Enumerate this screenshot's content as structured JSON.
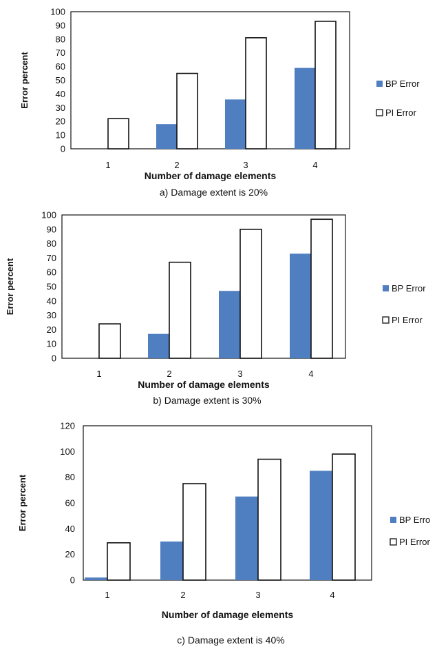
{
  "colors": {
    "bp_fill": "#4f7fc0",
    "pi_fill": "#ffffff",
    "stroke": "#111111"
  },
  "chart_data": [
    {
      "type": "bar",
      "caption": "a) Damage extent is 20%",
      "xlabel": "Number of damage elements",
      "ylabel": "Error percent",
      "categories": [
        "1",
        "2",
        "3",
        "4"
      ],
      "ylim": [
        0,
        100
      ],
      "yticks": [
        "0",
        "10",
        "20",
        "30",
        "40",
        "50",
        "60",
        "70",
        "80",
        "90",
        "100"
      ],
      "legend_position": "right",
      "series": [
        {
          "name": "BP Error",
          "values": [
            0,
            18,
            36,
            59
          ]
        },
        {
          "name": "PI Error",
          "values": [
            22,
            55,
            81,
            93
          ]
        }
      ]
    },
    {
      "type": "bar",
      "caption": "b) Damage extent is 30%",
      "xlabel": "Number of damage elements",
      "ylabel": "Error percent",
      "categories": [
        "1",
        "2",
        "3",
        "4"
      ],
      "ylim": [
        0,
        100
      ],
      "yticks": [
        "0",
        "10",
        "20",
        "30",
        "40",
        "50",
        "60",
        "70",
        "80",
        "90",
        "100"
      ],
      "legend_position": "right",
      "series": [
        {
          "name": "BP Error",
          "values": [
            0,
            17,
            47,
            73
          ]
        },
        {
          "name": "PI Error",
          "values": [
            24,
            67,
            90,
            97
          ]
        }
      ]
    },
    {
      "type": "bar",
      "caption": "c) Damage extent is 40%",
      "xlabel": "Number of damage elements",
      "ylabel": "Error percent",
      "categories": [
        "1",
        "2",
        "3",
        "4"
      ],
      "ylim": [
        0,
        120
      ],
      "yticks": [
        "0",
        "20",
        "40",
        "60",
        "80",
        "100",
        "120"
      ],
      "legend_position": "right",
      "series": [
        {
          "name": "BP Erro",
          "values": [
            2,
            30,
            65,
            85
          ]
        },
        {
          "name": "PI Error",
          "values": [
            29,
            75,
            94,
            98
          ]
        }
      ]
    }
  ]
}
